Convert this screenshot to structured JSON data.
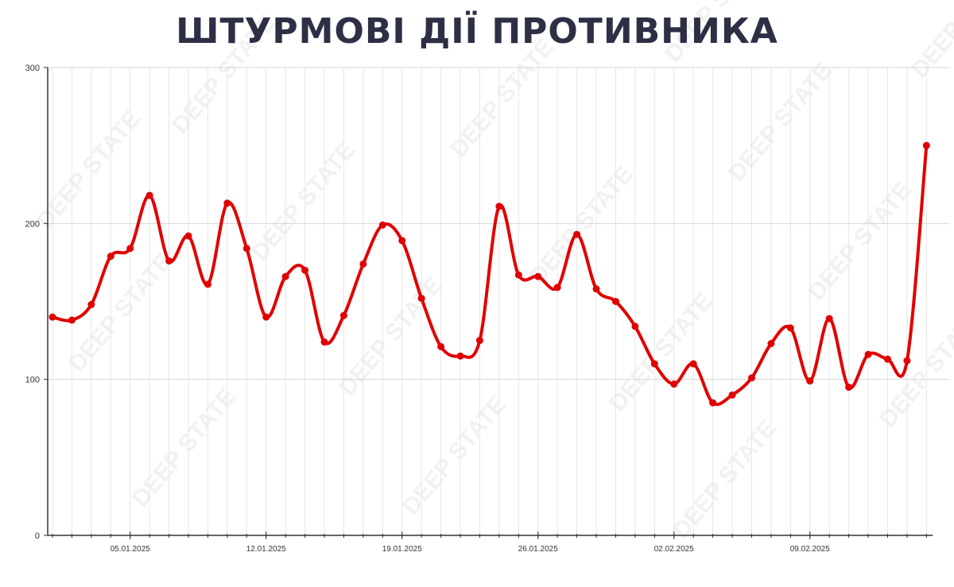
{
  "watermark": "DEEP STATE",
  "chart_data": {
    "type": "line",
    "title": "ШТУРМОВІ ДІЇ ПРОТИВНИКА",
    "xlabel": "",
    "ylabel": "",
    "ylim": [
      0,
      300
    ],
    "yticks": [
      0,
      100,
      200,
      300
    ],
    "grid": true,
    "smooth": true,
    "line_color": "#e00000",
    "x_start": "01.01.2025",
    "x_end": "15.02.2025",
    "xtick_labels": [
      "05.01.2025",
      "12.01.2025",
      "19.01.2025",
      "26.01.2025",
      "02.02.2025",
      "09.02.2025"
    ],
    "series": [
      {
        "values": [
          140,
          138,
          148,
          179,
          184,
          218,
          176,
          192,
          161,
          213,
          184,
          140,
          166,
          170,
          124,
          141,
          174,
          199,
          189,
          152,
          121,
          115,
          125,
          211,
          167,
          166,
          159,
          193,
          158,
          150,
          134,
          110,
          97,
          110,
          85,
          90,
          101,
          123,
          133,
          99,
          139,
          95,
          116,
          113,
          112,
          250
        ]
      }
    ]
  }
}
